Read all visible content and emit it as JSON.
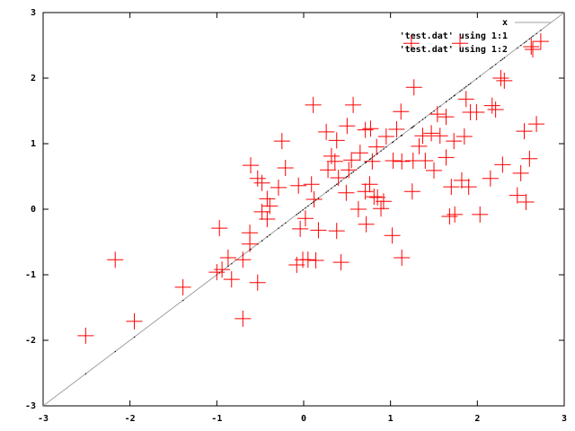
{
  "chart_data": {
    "type": "scatter",
    "xlim": [
      -3,
      3
    ],
    "ylim": [
      -3,
      3
    ],
    "xticks": [
      -3,
      -2,
      -1,
      0,
      1,
      2,
      3
    ],
    "yticks": [
      -3,
      -2,
      -1,
      0,
      1,
      2,
      3
    ],
    "legend": "top-right",
    "series": [
      {
        "name": "x",
        "color": "#a0a0a0",
        "style": "line",
        "x": [
          -3,
          3
        ],
        "values": [
          -3,
          3
        ]
      },
      {
        "name": "'test.dat' using 1:1",
        "color": "#000000",
        "style": "dots",
        "x": [
          -2.51,
          -2.17,
          -1.95,
          -1.39,
          -0.97,
          -1.0,
          -0.94,
          -0.87,
          -0.83,
          -0.7,
          -0.7,
          -0.61,
          -0.62,
          -0.62,
          -0.53,
          -0.53,
          -0.48,
          -0.48,
          -0.42,
          -0.42,
          -0.39,
          -0.29,
          -0.25,
          -0.21,
          -0.06,
          -0.04,
          -0.08,
          -0.01,
          0.05,
          0.02,
          0.09,
          0.11,
          0.12,
          0.14,
          0.17,
          0.26,
          0.28,
          0.32,
          0.36,
          0.38,
          0.38,
          0.4,
          0.43,
          0.49,
          0.5,
          0.52,
          0.55,
          0.57,
          0.63,
          0.65,
          0.71,
          0.71,
          0.72,
          0.76,
          0.77,
          0.79,
          0.81,
          0.84,
          0.85,
          0.89,
          0.92,
          0.95,
          1.02,
          1.03,
          1.07,
          1.12,
          1.13,
          1.13,
          1.25,
          1.24,
          1.26,
          1.27,
          1.33,
          1.37,
          1.4,
          1.47,
          1.5,
          1.54,
          1.57,
          1.64,
          1.64,
          1.68,
          1.7,
          1.73,
          1.74,
          1.8,
          1.82,
          1.85,
          1.87,
          1.9,
          1.92,
          1.99,
          2.03,
          2.15,
          2.17,
          2.21,
          2.27,
          2.31,
          2.29,
          2.46,
          2.5,
          2.54,
          2.56,
          2.6,
          2.62,
          2.68,
          2.73
        ],
        "values": [
          -2.51,
          -2.17,
          -1.95,
          -1.39,
          -0.97,
          -1.0,
          -0.94,
          -0.87,
          -0.83,
          -0.7,
          -0.7,
          -0.61,
          -0.62,
          -0.62,
          -0.53,
          -0.53,
          -0.48,
          -0.48,
          -0.42,
          -0.42,
          -0.39,
          -0.29,
          -0.25,
          -0.21,
          -0.06,
          -0.04,
          -0.08,
          -0.01,
          0.05,
          0.02,
          0.09,
          0.11,
          0.12,
          0.14,
          0.17,
          0.26,
          0.28,
          0.32,
          0.36,
          0.38,
          0.38,
          0.4,
          0.43,
          0.49,
          0.5,
          0.52,
          0.55,
          0.57,
          0.63,
          0.65,
          0.71,
          0.71,
          0.72,
          0.76,
          0.77,
          0.79,
          0.81,
          0.84,
          0.85,
          0.89,
          0.92,
          0.95,
          1.02,
          1.03,
          1.07,
          1.12,
          1.13,
          1.13,
          1.25,
          1.24,
          1.26,
          1.27,
          1.33,
          1.37,
          1.4,
          1.47,
          1.5,
          1.54,
          1.57,
          1.64,
          1.64,
          1.68,
          1.7,
          1.73,
          1.74,
          1.8,
          1.82,
          1.85,
          1.87,
          1.9,
          1.92,
          1.99,
          2.03,
          2.15,
          2.17,
          2.21,
          2.27,
          2.31,
          2.29,
          2.46,
          2.5,
          2.54,
          2.56,
          2.6,
          2.62,
          2.68,
          2.73
        ]
      },
      {
        "name": "'test.dat' using 1:2",
        "color": "#ff0000",
        "style": "points",
        "x": [
          -2.51,
          -2.17,
          -1.95,
          -1.39,
          -0.97,
          -1.0,
          -0.94,
          -0.87,
          -0.83,
          -0.7,
          -0.7,
          -0.61,
          -0.62,
          -0.62,
          -0.53,
          -0.53,
          -0.48,
          -0.48,
          -0.42,
          -0.42,
          -0.39,
          -0.29,
          -0.25,
          -0.21,
          -0.06,
          -0.04,
          -0.08,
          -0.01,
          0.05,
          0.02,
          0.09,
          0.11,
          0.12,
          0.14,
          0.17,
          0.26,
          0.28,
          0.32,
          0.36,
          0.38,
          0.38,
          0.4,
          0.43,
          0.49,
          0.5,
          0.52,
          0.55,
          0.57,
          0.63,
          0.65,
          0.71,
          0.71,
          0.72,
          0.76,
          0.77,
          0.79,
          0.81,
          0.84,
          0.85,
          0.89,
          0.92,
          0.95,
          1.02,
          1.03,
          1.07,
          1.12,
          1.13,
          1.13,
          1.25,
          1.24,
          1.26,
          1.27,
          1.33,
          1.37,
          1.4,
          1.47,
          1.5,
          1.54,
          1.57,
          1.64,
          1.64,
          1.68,
          1.7,
          1.73,
          1.74,
          1.8,
          1.82,
          1.85,
          1.87,
          1.9,
          1.92,
          1.99,
          2.03,
          2.15,
          2.17,
          2.21,
          2.27,
          2.31,
          2.29,
          2.46,
          2.5,
          2.54,
          2.56,
          2.6,
          2.62,
          2.68,
          2.73
        ],
        "values": [
          -1.93,
          -0.77,
          -1.71,
          -1.19,
          -0.29,
          -0.96,
          -0.92,
          -0.74,
          -1.07,
          -0.77,
          -1.67,
          0.67,
          -0.36,
          -0.53,
          -1.12,
          0.47,
          0.4,
          -0.04,
          0.16,
          -0.15,
          0.05,
          0.33,
          1.04,
          0.63,
          0.36,
          -0.3,
          -0.85,
          -0.77,
          -0.77,
          -0.14,
          0.38,
          1.59,
          0.15,
          -0.78,
          -0.32,
          1.18,
          0.6,
          0.81,
          0.73,
          1.05,
          -0.33,
          0.48,
          -0.81,
          0.25,
          1.27,
          0.6,
          0.75,
          1.59,
          0.0,
          0.86,
          1.21,
          0.27,
          -0.23,
          0.38,
          1.23,
          0.73,
          0.19,
          0.95,
          0.18,
          0.01,
          0.12,
          1.11,
          -0.4,
          0.74,
          1.22,
          1.49,
          0.73,
          -0.74,
          0.27,
          2.53,
          0.74,
          1.86,
          0.96,
          1.12,
          0.74,
          1.16,
          0.59,
          1.45,
          1.12,
          1.41,
          0.79,
          -0.11,
          0.34,
          1.04,
          -0.08,
          2.53,
          0.44,
          1.11,
          1.68,
          0.34,
          1.48,
          1.48,
          -0.08,
          0.47,
          1.58,
          1.52,
          2.0,
          1.96,
          0.68,
          0.21,
          0.55,
          1.19,
          0.11,
          0.77,
          2.48,
          1.3,
          2.56
        ]
      }
    ]
  }
}
